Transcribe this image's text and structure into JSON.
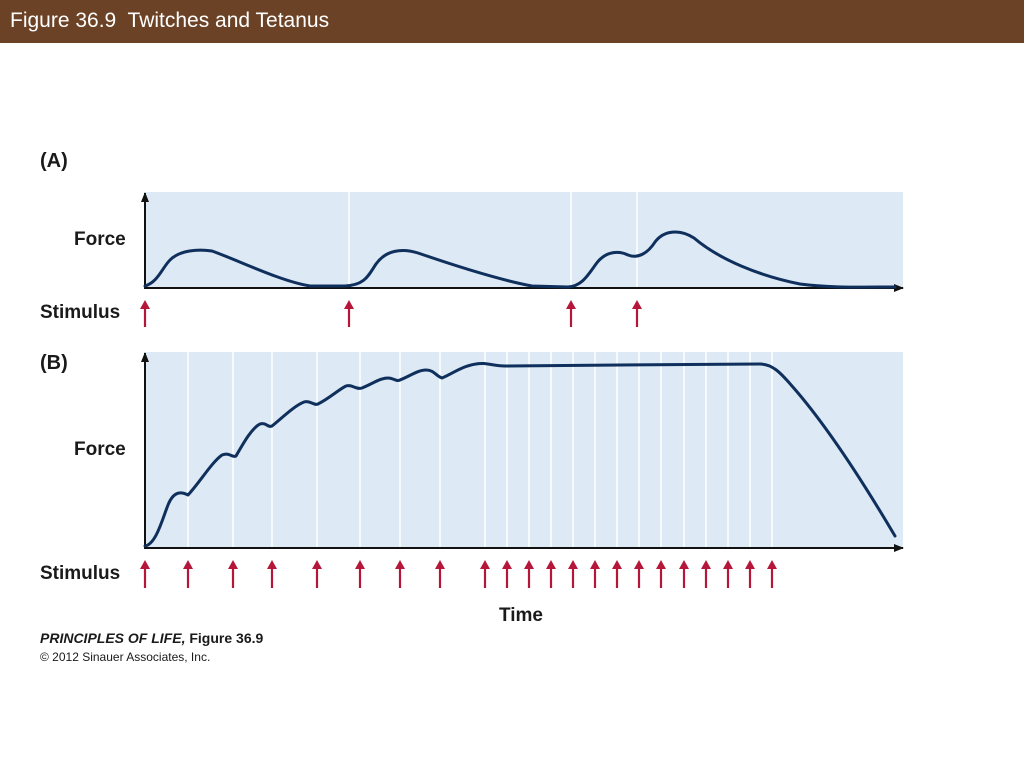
{
  "header": {
    "title": "Figure 36.9  Twitches and Tetanus",
    "bar_color": "#6b4226"
  },
  "panel_a": {
    "label": "(A)",
    "force_label": "Force",
    "stimulus_label": "Stimulus",
    "description": "Single twitches and summation of two closely spaced stimuli",
    "stimulus_count": 4
  },
  "panel_b": {
    "label": "(B)",
    "force_label": "Force",
    "stimulus_label": "Stimulus",
    "description": "Repeated stimuli produce summation and tetanus",
    "stimulus_count": 23
  },
  "x_axis_label": "Time",
  "credit": {
    "book": "PRINCIPLES OF LIFE,",
    "figure": " Figure 36.9",
    "copyright": "© 2012 Sinauer Associates, Inc."
  },
  "colors": {
    "plot_background": "#dde9f4",
    "curve": "#0f2f5c",
    "stimulus_arrow": "#b5173a",
    "axis": "#111111"
  }
}
